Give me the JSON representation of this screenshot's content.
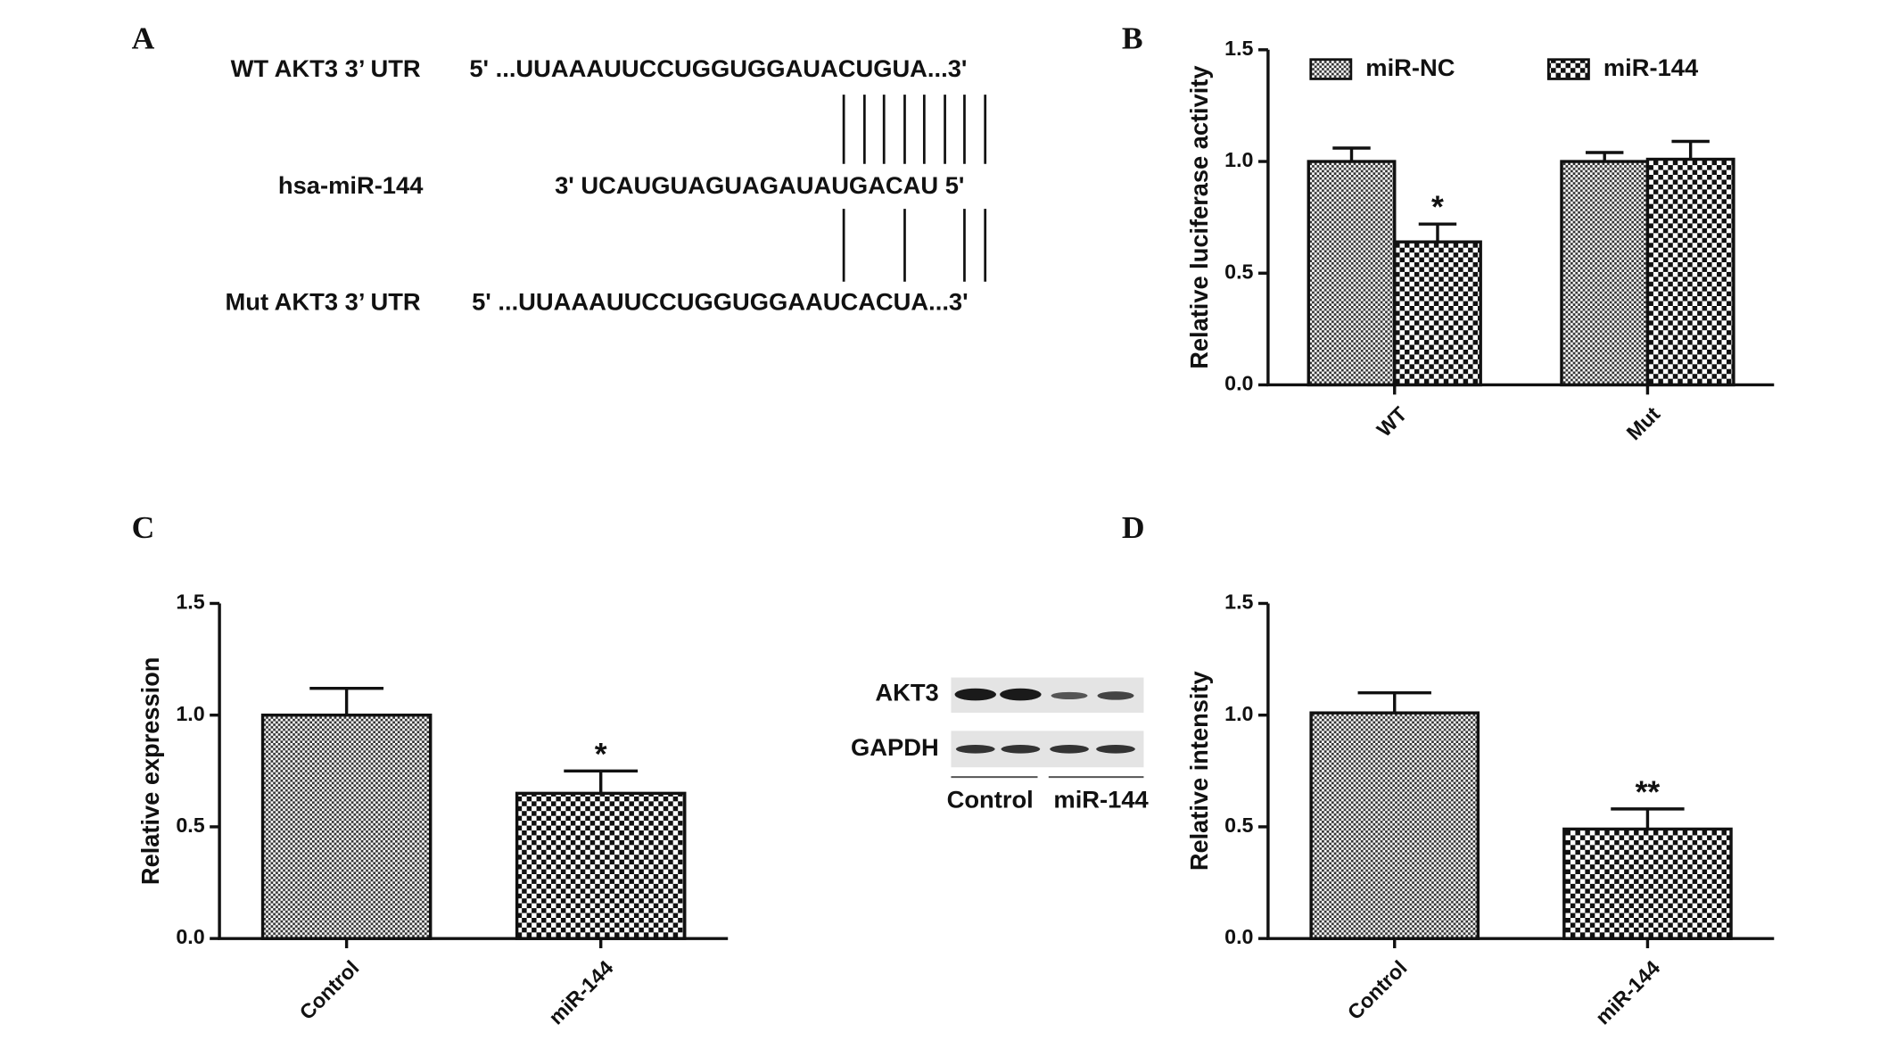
{
  "panel_a": {
    "panel": "A",
    "rows": [
      {
        "label": "WT AKT3 3’ UTR",
        "sequence": "5' ...UUAAAUUCCUGGUGGAUACUGUA...3'"
      },
      {
        "label": "hsa-miR-144",
        "sequence": "3' UCAUGUAGUAGAUAUGACAU 5'"
      },
      {
        "label": "Mut AKT3 3’ UTR",
        "sequence": "5' ...UUAAAUUCCUGGUGGAAUCACUA...3'"
      }
    ]
  },
  "blot": {
    "bands": [
      "AKT3",
      "GAPDH"
    ],
    "groups": [
      "Control",
      "miR-144"
    ]
  },
  "chart_data": [
    {
      "type": "bar",
      "panel": "B",
      "ylabel": "Relative luciferase activity",
      "categories": [
        "WT",
        "Mut"
      ],
      "series": [
        {
          "name": "miR-NC",
          "pattern": "fine",
          "values": [
            1.0,
            1.0
          ],
          "errors": [
            0.06,
            0.04
          ],
          "significance": [
            null,
            null
          ]
        },
        {
          "name": "miR-144",
          "pattern": "coarse",
          "values": [
            0.64,
            1.01
          ],
          "errors": [
            0.08,
            0.08
          ],
          "significance": [
            "*",
            null
          ]
        }
      ],
      "ylim": [
        0,
        1.5
      ],
      "yticks": [
        {
          "value": 0,
          "label": "0.0"
        },
        {
          "value": 0.5,
          "label": "0.5"
        },
        {
          "value": 1,
          "label": "1.0"
        },
        {
          "value": 1.5,
          "label": "1.5"
        }
      ]
    },
    {
      "type": "bar",
      "panel": "C",
      "ylabel": "Relative expression",
      "categories": [
        "Control",
        "miR-144"
      ],
      "values": [
        1.0,
        0.65
      ],
      "errors": [
        0.12,
        0.1
      ],
      "significance": [
        null,
        "*"
      ],
      "patterns": [
        "fine",
        "coarse"
      ],
      "ylim": [
        0,
        1.5
      ],
      "yticks": [
        {
          "value": 0,
          "label": "0.0"
        },
        {
          "value": 0.5,
          "label": "0.5"
        },
        {
          "value": 1,
          "label": "1.0"
        },
        {
          "value": 1.5,
          "label": "1.5"
        }
      ]
    },
    {
      "type": "bar",
      "panel": "D",
      "ylabel": "Relative intensity",
      "categories": [
        "Control",
        "miR-144"
      ],
      "values": [
        1.01,
        0.49
      ],
      "errors": [
        0.09,
        0.09
      ],
      "significance": [
        null,
        "**"
      ],
      "patterns": [
        "fine",
        "coarse"
      ],
      "ylim": [
        0,
        1.5
      ],
      "yticks": [
        {
          "value": 0,
          "label": "0.0"
        },
        {
          "value": 0.5,
          "label": "0.5"
        },
        {
          "value": 1,
          "label": "1.0"
        },
        {
          "value": 1.5,
          "label": "1.5"
        }
      ]
    }
  ]
}
